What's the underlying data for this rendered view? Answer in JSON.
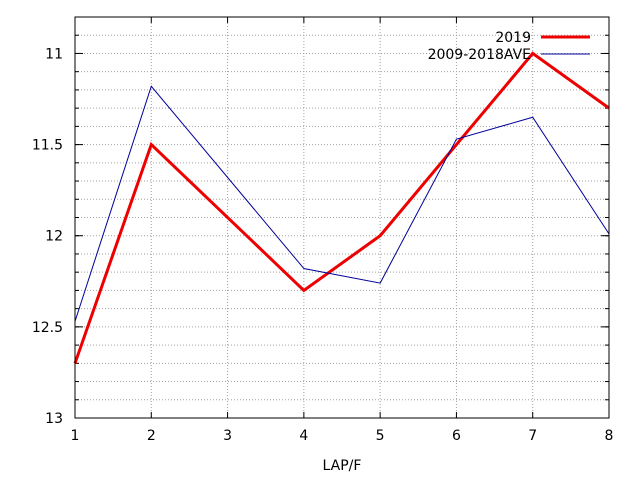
{
  "chart_data": {
    "type": "line",
    "title": "",
    "xlabel": "LAP/F",
    "ylabel": "",
    "x": [
      1,
      2,
      3,
      4,
      5,
      6,
      7,
      8
    ],
    "xlim": [
      1,
      8
    ],
    "ylim": [
      10.8,
      13
    ],
    "y_inverted": true,
    "x_ticks": [
      1,
      2,
      3,
      4,
      5,
      6,
      7,
      8
    ],
    "x_tick_labels": [
      "1",
      "2",
      "3",
      "4",
      "5",
      "6",
      "7",
      "8"
    ],
    "y_ticks": [
      11,
      11.5,
      12,
      12.5,
      13
    ],
    "y_tick_labels": [
      "11",
      "11.5",
      "12",
      "12.5",
      "13"
    ],
    "y_minor_step": 0.1,
    "grid": true,
    "legend_position": "top-right",
    "series": [
      {
        "name": "2019",
        "color": "#ee0000",
        "values": [
          12.7,
          11.5,
          null,
          12.3,
          12.0,
          null,
          11.0,
          11.3
        ]
      },
      {
        "name": "2009-2018AVE",
        "color": "#000099",
        "values": [
          12.47,
          11.18,
          null,
          12.18,
          12.26,
          11.47,
          11.35,
          11.99
        ]
      }
    ]
  }
}
